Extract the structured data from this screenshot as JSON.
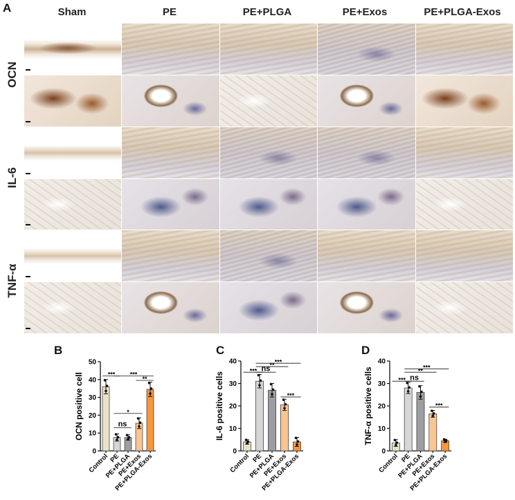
{
  "panel_letters": [
    "A",
    "B",
    "C",
    "D"
  ],
  "columns": [
    "Sham",
    "PE",
    "PE+PLGA",
    "PE+Exos",
    "PE+PLGA-Exos"
  ],
  "rows": [
    "OCN",
    "IL-6",
    "TNF-α"
  ],
  "chart_data": [
    {
      "type": "bar",
      "panel": "B",
      "ylabel": "OCN positive cell",
      "ylim": [
        0,
        50
      ],
      "yticks": [
        0,
        10,
        20,
        30,
        40,
        50
      ],
      "categories": [
        "Control",
        "PE",
        "PE+PLGA",
        "PE+Exos",
        "PE+PLGA-Exos"
      ],
      "values": [
        36,
        7.5,
        7.5,
        15.5,
        34.5
      ],
      "errors": [
        4,
        2,
        1.5,
        3,
        4
      ],
      "colors": [
        "#e9e3c6",
        "#d6d6d6",
        "#9d9da2",
        "#fcc590",
        "#f7963c"
      ],
      "comparisons": [
        {
          "a": 0,
          "b": 1,
          "label": "***",
          "y": 42
        },
        {
          "a": 1,
          "b": 4,
          "label": "***",
          "y": 42
        },
        {
          "a": 3,
          "b": 4,
          "label": "**",
          "y": 39.5
        },
        {
          "a": 1,
          "b": 2,
          "label": "ns",
          "y": 13
        },
        {
          "a": 1,
          "b": 3,
          "label": "*",
          "y": 21
        }
      ]
    },
    {
      "type": "bar",
      "panel": "C",
      "ylabel": "IL-6 positive cells",
      "ylim": [
        0,
        40
      ],
      "yticks": [
        0,
        10,
        20,
        30,
        40
      ],
      "categories": [
        "Control",
        "PE",
        "PE+PLGA",
        "PE+Exos",
        "PE+PLGA-Exos"
      ],
      "values": [
        4,
        31,
        27,
        20.5,
        4
      ],
      "errors": [
        1,
        3,
        3,
        2.5,
        2
      ],
      "colors": [
        "#e9e3c6",
        "#d6d6d6",
        "#9d9da2",
        "#fcc590",
        "#f7963c"
      ],
      "comparisons": [
        {
          "a": 0,
          "b": 1,
          "label": "***",
          "y": 35
        },
        {
          "a": 1,
          "b": 2,
          "label": "ns",
          "y": 35
        },
        {
          "a": 1,
          "b": 3,
          "label": "**",
          "y": 37.5
        },
        {
          "a": 1,
          "b": 4,
          "label": "***",
          "y": 39
        },
        {
          "a": 3,
          "b": 4,
          "label": "***",
          "y": 24
        }
      ]
    },
    {
      "type": "bar",
      "panel": "D",
      "ylabel": "TNF-α positive cells",
      "ylim": [
        0,
        40
      ],
      "yticks": [
        0,
        10,
        20,
        30,
        40
      ],
      "categories": [
        "Control",
        "PE",
        "PE+PLGA",
        "PE+Exos",
        "PE+PLGA-Exos"
      ],
      "values": [
        3.5,
        28,
        26,
        16.5,
        4.5
      ],
      "errors": [
        1.5,
        2.5,
        3,
        1.5,
        0.7
      ],
      "colors": [
        "#e9e3c6",
        "#d6d6d6",
        "#9d9da2",
        "#fcc590",
        "#f7963c"
      ],
      "comparisons": [
        {
          "a": 0,
          "b": 1,
          "label": "***",
          "y": 31
        },
        {
          "a": 1,
          "b": 2,
          "label": "ns",
          "y": 31
        },
        {
          "a": 1,
          "b": 3,
          "label": "**",
          "y": 35
        },
        {
          "a": 1,
          "b": 4,
          "label": "***",
          "y": 36.5
        },
        {
          "a": 3,
          "b": 4,
          "label": "***",
          "y": 19.5
        }
      ]
    }
  ]
}
